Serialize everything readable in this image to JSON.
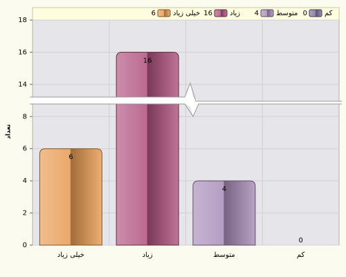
{
  "chart_data": {
    "type": "bar",
    "categories": [
      "خیلی زیاد",
      "زیاد",
      "متوسط",
      "کم"
    ],
    "values": [
      6,
      16,
      4,
      0
    ],
    "colors": [
      "#e89a50",
      "#b0507e",
      "#a88cb8",
      "#8070a0"
    ],
    "y_label": "تعداد",
    "ylim": [
      0,
      18
    ],
    "yticks": [
      0,
      2,
      4,
      6,
      8,
      14,
      16,
      18
    ],
    "axis_break": [
      9,
      13
    ],
    "grid": true,
    "legend": "top"
  }
}
